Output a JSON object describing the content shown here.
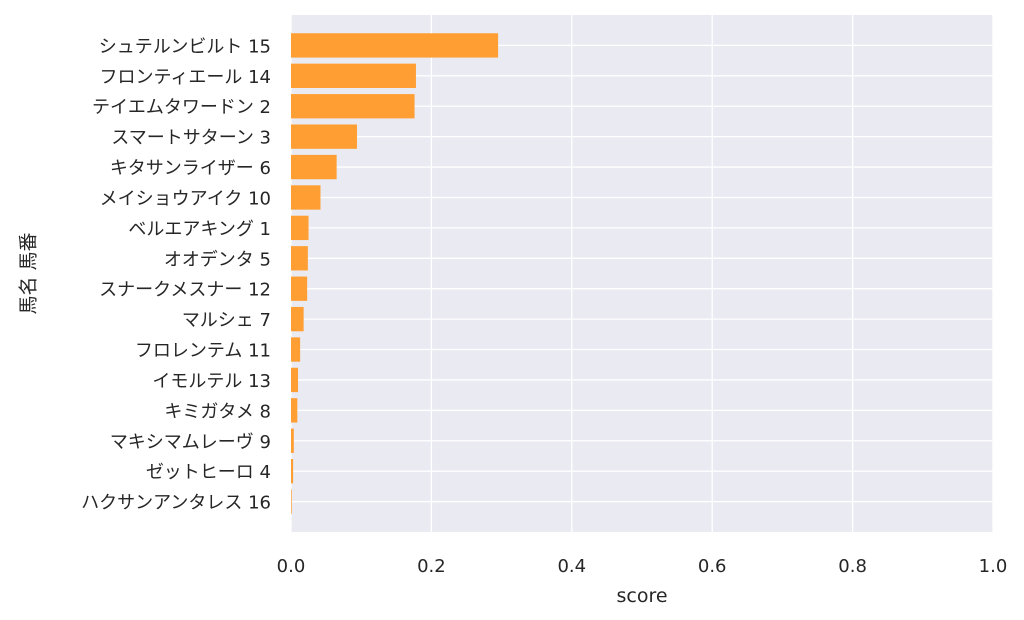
{
  "chart_data": {
    "type": "bar",
    "orientation": "horizontal",
    "categories": [
      "シュテルンビルト 15",
      "フロンティエール 14",
      "テイエムタワードン 2",
      "スマートサターン 3",
      "キタサンライザー 6",
      "メイショウアイク 10",
      "ベルエアキング 1",
      "オオデンタ 5",
      "スナークメスナー 12",
      "マルシェ 7",
      "フロレンテム 11",
      "イモルテル 13",
      "キミガタメ 8",
      "マキシマムレーヴ 9",
      "ゼットヒーロ 4",
      "ハクサンアンタレス 16"
    ],
    "values": [
      0.295,
      0.178,
      0.176,
      0.094,
      0.065,
      0.042,
      0.025,
      0.024,
      0.023,
      0.018,
      0.013,
      0.01,
      0.009,
      0.004,
      0.003,
      0.001
    ],
    "xlabel": "score",
    "ylabel": "馬名 馬番",
    "xlim": [
      0,
      1.0
    ],
    "xticks": [
      0.0,
      0.2,
      0.4,
      0.6,
      0.8,
      1.0
    ],
    "xtick_labels": [
      "0.0",
      "0.2",
      "0.4",
      "0.6",
      "0.8",
      "1.0"
    ],
    "grid": true,
    "colors": {
      "bar": "#ff9f33",
      "plot_background": "#eaeaf2",
      "grid": "#ffffff",
      "text": "#262626"
    }
  }
}
